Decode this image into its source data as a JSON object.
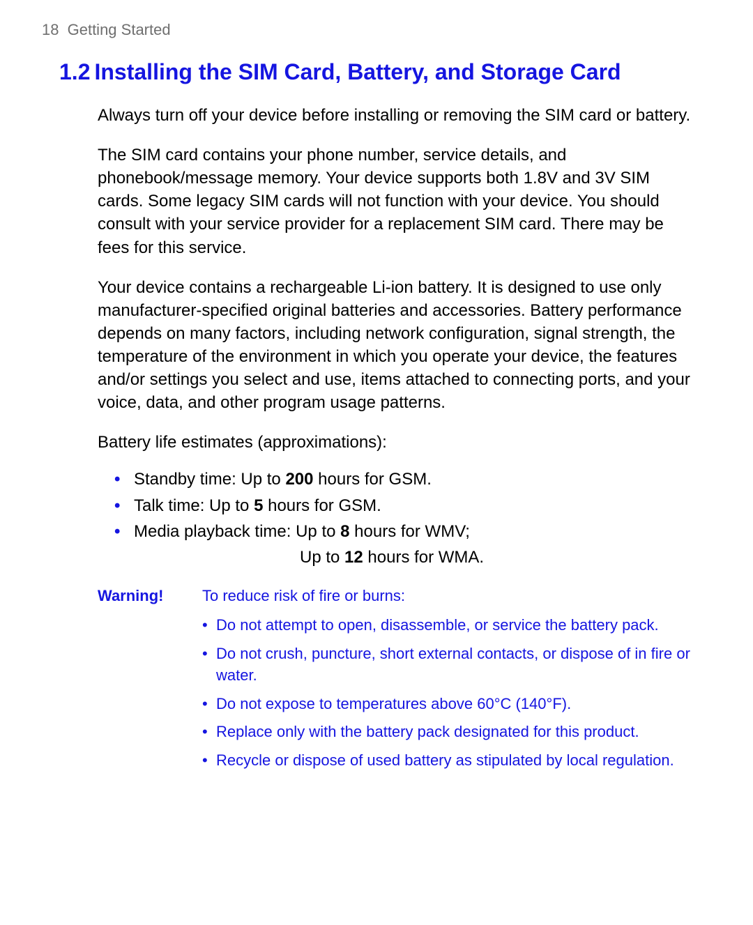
{
  "colors": {
    "accent": "#1515e0",
    "header_text": "#6f6f6f",
    "body_text": "#000000",
    "background": "#ffffff"
  },
  "typography": {
    "body_fontsize": 24,
    "heading_fontsize": 32,
    "warning_fontsize": 22,
    "header_fontsize": 22
  },
  "header": {
    "page_number": "18",
    "chapter": "Getting Started"
  },
  "section": {
    "number": "1.2",
    "title": "Installing the SIM Card, Battery, and Storage Card"
  },
  "paragraphs": {
    "p1": "Always turn off your device before installing or removing the SIM card or battery.",
    "p2": "The SIM card contains your phone number, service details, and phonebook/message memory. Your device supports both 1.8V and 3V SIM cards. Some legacy SIM cards will not function with your device. You should consult with your service provider for a replacement SIM card. There may be fees for this service.",
    "p3": "Your device contains a rechargeable Li-ion battery. It is designed to use only manufacturer-specified original batteries and accessories. Battery performance depends on many factors, including network configuration, signal strength, the temperature of the environment in which you operate your device, the features and/or settings you select and use, items attached to connecting ports, and your voice, data, and other program usage patterns.",
    "p4": "Battery life estimates (approximations):"
  },
  "battery_estimates": {
    "standby": {
      "pre": "Standby time: Up to ",
      "value": "200",
      "post": " hours for GSM."
    },
    "talk": {
      "pre": "Talk time: Up to ",
      "value": "5",
      "post": " hours for GSM."
    },
    "media": {
      "pre": "Media playback time: Up to ",
      "value": "8",
      "post": " hours for WMV;"
    },
    "media2": {
      "pre": "Up to ",
      "value": "12",
      "post": " hours for WMA."
    }
  },
  "warning": {
    "label": "Warning!",
    "intro": "To reduce risk of fire or burns:",
    "items": {
      "w1": "Do not attempt to open, disassemble, or service the battery pack.",
      "w2": "Do not crush, puncture, short external contacts, or dispose of in fire or water.",
      "w3": "Do not expose to temperatures above 60°C (140°F).",
      "w4": "Replace only with the battery pack designated for this product.",
      "w5": "Recycle or dispose of used battery as stipulated by local regulation."
    }
  }
}
